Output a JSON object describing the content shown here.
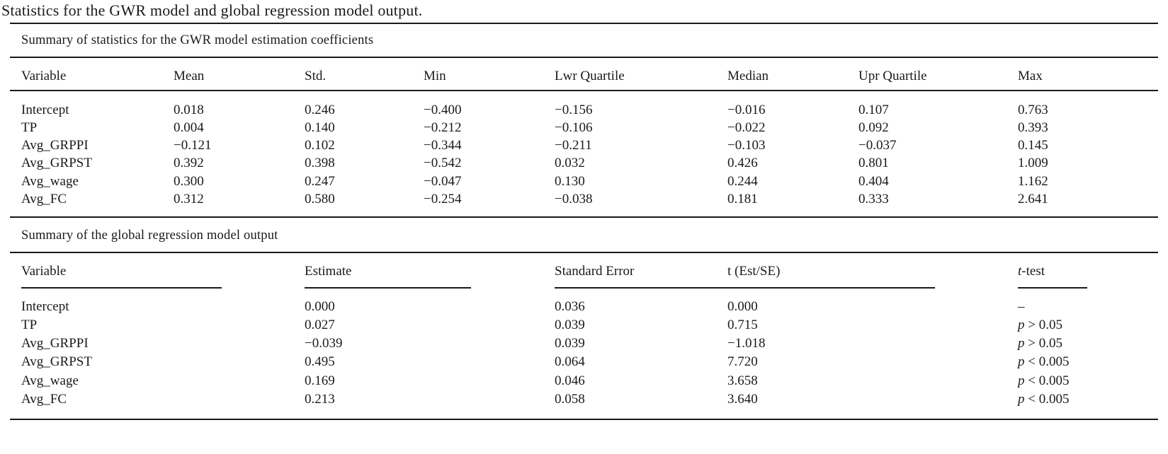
{
  "caption": "Statistics for the GWR model and global regression model output.",
  "gwr": {
    "title": "Summary of statistics for the GWR model estimation coefficients",
    "headers": [
      "Variable",
      "Mean",
      "Std.",
      "Min",
      "Lwr Quartile",
      "Median",
      "Upr Quartile",
      "Max"
    ],
    "rows": [
      [
        "Intercept",
        "0.018",
        "0.246",
        "−0.400",
        "−0.156",
        "−0.016",
        "0.107",
        "0.763"
      ],
      [
        "TP",
        "0.004",
        "0.140",
        "−0.212",
        "−0.106",
        "−0.022",
        "0.092",
        "0.393"
      ],
      [
        "Avg_GRPPI",
        "−0.121",
        "0.102",
        "−0.344",
        "−0.211",
        "−0.103",
        "−0.037",
        "0.145"
      ],
      [
        "Avg_GRPST",
        "0.392",
        "0.398",
        "−0.542",
        "0.032",
        "0.426",
        "0.801",
        "1.009"
      ],
      [
        "Avg_wage",
        "0.300",
        "0.247",
        "−0.047",
        "0.130",
        "0.244",
        "0.404",
        "1.162"
      ],
      [
        "Avg_FC",
        "0.312",
        "0.580",
        "−0.254",
        "−0.038",
        "0.181",
        "0.333",
        "2.641"
      ]
    ]
  },
  "global": {
    "title": "Summary of the global regression model output",
    "headers": [
      "Variable",
      "Estimate",
      "Standard Error",
      "t (Est/SE)",
      "t-test"
    ],
    "rows": [
      [
        "Intercept",
        "0.000",
        "0.036",
        "0.000",
        "–"
      ],
      [
        "TP",
        "0.027",
        "0.039",
        "0.715",
        "p > 0.05"
      ],
      [
        "Avg_GRPPI",
        "−0.039",
        "0.039",
        "−1.018",
        "p > 0.05"
      ],
      [
        "Avg_GRPST",
        "0.495",
        "0.064",
        "7.720",
        "p < 0.005"
      ],
      [
        "Avg_wage",
        "0.169",
        "0.046",
        "3.658",
        "p < 0.005"
      ],
      [
        "Avg_FC",
        "0.213",
        "0.058",
        "3.640",
        "p < 0.005"
      ]
    ]
  }
}
